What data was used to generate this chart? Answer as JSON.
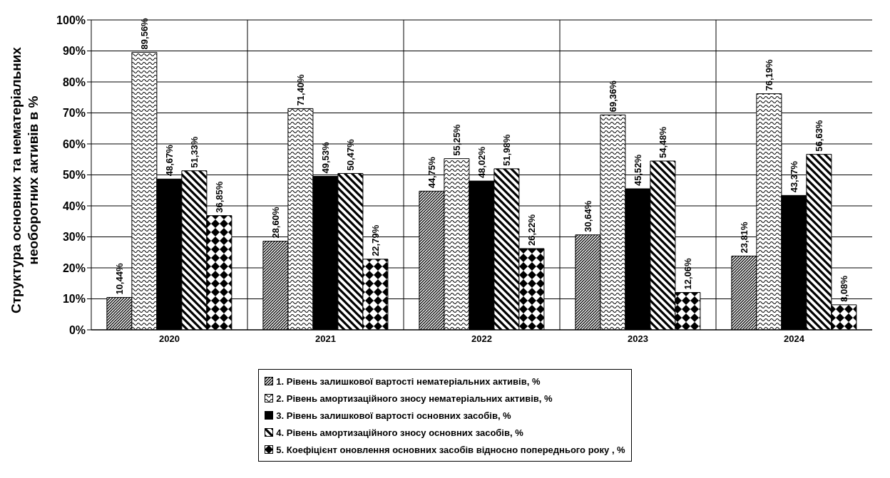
{
  "chart_data": {
    "type": "bar",
    "ylabel": "Структура основних та нематеріальних необоротних активів в %",
    "categories": [
      "2020",
      "2021",
      "2022",
      "2023",
      "2024"
    ],
    "series": [
      {
        "name": "1. Рівень залишкової вартості нематеріальних активів, %",
        "color": "#000000",
        "values": [
          10.44,
          28.6,
          44.75,
          30.64,
          23.81
        ],
        "value_labels": [
          "10,44%",
          "28,60%",
          "44,75%",
          "30,64%",
          "23,81%"
        ]
      },
      {
        "name": "2. Рівень амортизаційного зносу нематеріальних активів, %",
        "color": "#000000",
        "values": [
          89.56,
          71.4,
          55.25,
          69.36,
          76.19
        ],
        "value_labels": [
          "89,56%",
          "71,40%",
          "55,25%",
          "69,36%",
          "76,19%"
        ]
      },
      {
        "name": "3. Рівень залишкової вартості основних засобів, %",
        "color": "#000000",
        "values": [
          48.67,
          49.53,
          48.02,
          45.52,
          43.37
        ],
        "value_labels": [
          "48,67%",
          "49,53%",
          "48,02%",
          "45,52%",
          "43,37%"
        ]
      },
      {
        "name": "4. Рівень амортизаційного зносу основних засобів, %",
        "color": "#000000",
        "values": [
          51.33,
          50.47,
          51.98,
          54.48,
          56.63
        ],
        "value_labels": [
          "51,33%",
          "50,47%",
          "51,98%",
          "54,48%",
          "56,63%"
        ]
      },
      {
        "name": "5. Коефіцієнт оновлення основних засобів відносно попереднього року , %",
        "color": "#000000",
        "values": [
          36.85,
          22.79,
          26.22,
          12.06,
          8.08
        ],
        "value_labels": [
          "36,85%",
          "22,79%",
          "26,22%",
          "12,06%",
          "8,08%"
        ]
      }
    ],
    "ylim": [
      0,
      100
    ],
    "yticks": [
      {
        "value": 0,
        "label": "0%"
      },
      {
        "value": 10,
        "label": "10%"
      },
      {
        "value": 20,
        "label": "20%"
      },
      {
        "value": 30,
        "label": "30%"
      },
      {
        "value": 40,
        "label": "40%"
      },
      {
        "value": 50,
        "label": "50%"
      },
      {
        "value": 60,
        "label": "60%"
      },
      {
        "value": 70,
        "label": "70%"
      },
      {
        "value": 80,
        "label": "80%"
      },
      {
        "value": 90,
        "label": "90%"
      },
      {
        "value": 100,
        "label": "100%"
      }
    ],
    "grid": true,
    "legend": "bottom"
  }
}
